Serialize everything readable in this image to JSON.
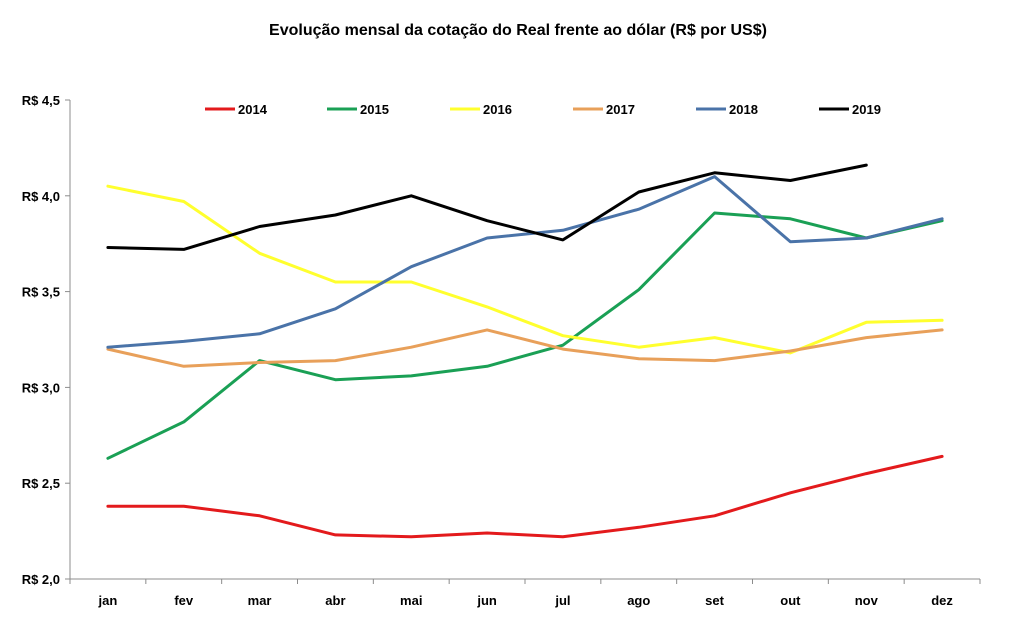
{
  "chart_data": {
    "type": "line",
    "title": "Evolução mensal da cotação do Real frente ao dólar (R$ por US$)",
    "xlabel": "",
    "ylabel": "",
    "ylim": [
      2.0,
      4.5
    ],
    "y_ticks": [
      2.0,
      2.5,
      3.0,
      3.5,
      4.0,
      4.5
    ],
    "y_tick_labels": [
      "R$ 2,0",
      "R$ 2,5",
      "R$ 3,0",
      "R$ 3,5",
      "R$ 4,0",
      "R$ 4,5"
    ],
    "categories": [
      "jan",
      "fev",
      "mar",
      "abr",
      "mai",
      "jun",
      "jul",
      "ago",
      "set",
      "out",
      "nov",
      "dez"
    ],
    "grid": false,
    "legend_position": "top",
    "series": [
      {
        "name": "2014",
        "color": "#e31a1c",
        "values": [
          2.38,
          2.38,
          2.33,
          2.23,
          2.22,
          2.24,
          2.22,
          2.27,
          2.33,
          2.45,
          2.55,
          2.64
        ]
      },
      {
        "name": "2015",
        "color": "#1aa055",
        "values": [
          2.63,
          2.82,
          3.14,
          3.04,
          3.06,
          3.11,
          3.22,
          3.51,
          3.91,
          3.88,
          3.78,
          3.87
        ]
      },
      {
        "name": "2016",
        "color": "#ffff2e",
        "values": [
          4.05,
          3.97,
          3.7,
          3.55,
          3.55,
          3.42,
          3.27,
          3.21,
          3.26,
          3.18,
          3.34,
          3.35
        ]
      },
      {
        "name": "2017",
        "color": "#e8a05a",
        "values": [
          3.2,
          3.11,
          3.13,
          3.14,
          3.21,
          3.3,
          3.2,
          3.15,
          3.14,
          3.19,
          3.26,
          3.3
        ]
      },
      {
        "name": "2018",
        "color": "#4a73a8",
        "values": [
          3.21,
          3.24,
          3.28,
          3.41,
          3.63,
          3.78,
          3.82,
          3.93,
          4.1,
          3.76,
          3.78,
          3.88
        ]
      },
      {
        "name": "2019",
        "color": "#000000",
        "values": [
          3.73,
          3.72,
          3.84,
          3.9,
          4.0,
          3.87,
          3.77,
          4.02,
          4.12,
          4.08,
          4.16,
          null
        ]
      }
    ]
  }
}
